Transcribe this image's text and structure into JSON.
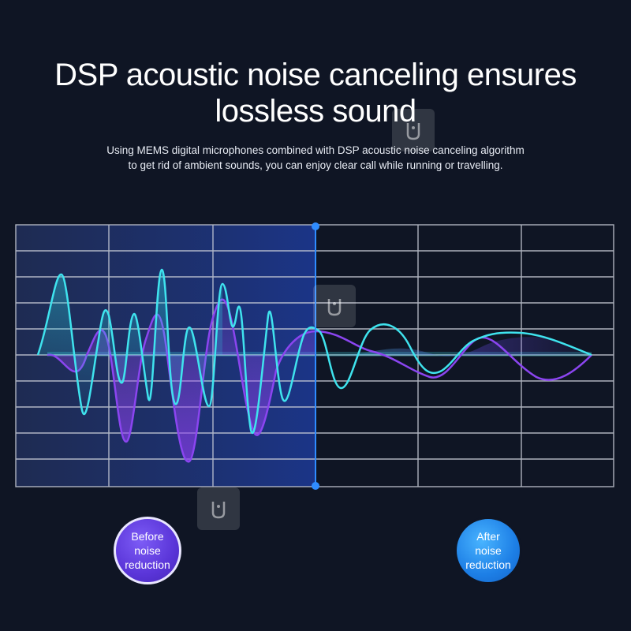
{
  "headline": {
    "line1": "DSP acoustic noise canceling ensures",
    "line2": "lossless sound"
  },
  "subtitle": {
    "line1": "Using MEMS digital microphones combined with DSP acoustic noise canceling algorithm",
    "line2": "to get rid of ambient sounds, you can enjoy clear call while running or travelling."
  },
  "badges": {
    "before": {
      "line1": "Before",
      "line2": "noise",
      "line3": "reduction"
    },
    "after": {
      "line1": "After",
      "line2": "noise",
      "line3": "reduction"
    }
  },
  "colors": {
    "background": "#0f1524",
    "grid": "#c9ced8",
    "cyan_wave": "#3fe3ee",
    "purple_wave": "#8b45f0",
    "divider": "#2f8cff",
    "before_badge": "#5a35d8",
    "after_badge": "#1d7fe6"
  },
  "icons": {
    "watermark": "watermark-logo-icon"
  }
}
